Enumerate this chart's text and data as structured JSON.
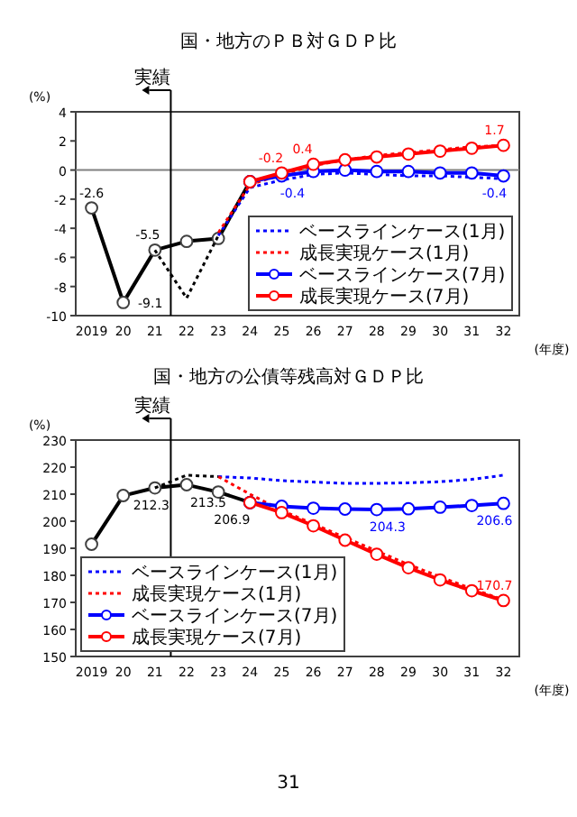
{
  "chart_data": [
    {
      "type": "line",
      "title": "国・地方のＰＢ対ＧＤＰ比",
      "ylabel": "(%)",
      "xlabel": "(年度)",
      "categories": [
        "2019",
        "20",
        "21",
        "22",
        "23",
        "24",
        "25",
        "26",
        "27",
        "28",
        "29",
        "30",
        "31",
        "32"
      ],
      "ylim": [
        -10,
        4
      ],
      "yticks": [
        -10,
        -8,
        -6,
        -4,
        -2,
        0,
        2,
        4
      ],
      "ref_lines": [
        {
          "axis": "y",
          "value": 0,
          "color": "#808080"
        },
        {
          "axis": "x",
          "value": "21",
          "label": "実績",
          "color": "#000000"
        }
      ],
      "legend": "bottom right",
      "series": [
        {
          "color": "#000000",
          "marker": "circle",
          "line_style": "solid",
          "values": [
            -2.6,
            -9.1,
            -5.5,
            -4.9,
            -4.7,
            -0.8,
            null,
            null,
            null,
            null,
            null,
            null,
            null,
            null
          ],
          "value_labels": [
            "-2.6",
            "-9.1",
            "-5.5",
            null,
            null,
            null,
            null,
            null,
            null,
            null,
            null,
            null,
            null,
            null
          ]
        },
        {
          "color": "#000000",
          "marker": "none",
          "line_style": "dotted",
          "values": [
            null,
            null,
            -5.5,
            -8.8,
            -4.5,
            null,
            null,
            null,
            null,
            null,
            null,
            null,
            null,
            null
          ]
        },
        {
          "name": "ベースラインケース(1月)",
          "color": "#0000ff",
          "marker": "none",
          "line_style": "dotted",
          "values": [
            null,
            null,
            null,
            null,
            -4.5,
            -1.2,
            -0.7,
            -0.3,
            -0.2,
            -0.3,
            -0.4,
            -0.4,
            -0.5,
            -0.6
          ]
        },
        {
          "name": "成長実現ケース(1月)",
          "color": "#ff0000",
          "marker": "none",
          "line_style": "dotted",
          "values": [
            null,
            null,
            null,
            null,
            -4.3,
            -1.0,
            -0.3,
            0.3,
            0.7,
            1.0,
            1.2,
            1.4,
            1.6,
            1.7
          ]
        },
        {
          "name": "ベースラインケース(7月)",
          "color": "#0000ff",
          "marker": "circle",
          "line_style": "solid",
          "values": [
            null,
            null,
            null,
            null,
            null,
            -0.8,
            -0.4,
            -0.1,
            0.0,
            -0.1,
            -0.1,
            -0.2,
            -0.2,
            -0.4
          ],
          "value_labels": [
            null,
            null,
            null,
            null,
            null,
            null,
            "-0.4",
            null,
            null,
            null,
            null,
            null,
            null,
            "-0.4"
          ]
        },
        {
          "name": "成長実現ケース(7月)",
          "color": "#ff0000",
          "marker": "circle",
          "line_style": "solid",
          "values": [
            null,
            null,
            null,
            null,
            null,
            -0.8,
            -0.2,
            0.4,
            0.7,
            0.9,
            1.1,
            1.3,
            1.5,
            1.7
          ],
          "value_labels": [
            null,
            null,
            null,
            null,
            null,
            null,
            "-0.2",
            "0.4",
            null,
            null,
            null,
            null,
            null,
            "1.7"
          ]
        }
      ]
    },
    {
      "type": "line",
      "title": "国・地方の公債等残高対ＧＤＰ比",
      "ylabel": "(%)",
      "xlabel": "(年度)",
      "categories": [
        "2019",
        "20",
        "21",
        "22",
        "23",
        "24",
        "25",
        "26",
        "27",
        "28",
        "29",
        "30",
        "31",
        "32"
      ],
      "ylim": [
        150,
        230
      ],
      "yticks": [
        150,
        160,
        170,
        180,
        190,
        200,
        210,
        220,
        230
      ],
      "ref_lines": [
        {
          "axis": "x",
          "value": "21",
          "label": "実績",
          "color": "#000000"
        }
      ],
      "annotations": [
        "31"
      ],
      "legend": "bottom",
      "series": [
        {
          "color": "#000000",
          "marker": "circle",
          "line_style": "solid",
          "values": [
            191.5,
            209.5,
            212.3,
            213.5,
            210.8,
            206.9,
            null,
            null,
            null,
            null,
            null,
            null,
            null,
            null
          ],
          "value_labels": [
            null,
            null,
            "212.3",
            "213.5",
            null,
            "206.9",
            null,
            null,
            null,
            null,
            null,
            null,
            null,
            null
          ]
        },
        {
          "color": "#000000",
          "marker": "none",
          "line_style": "dotted",
          "values": [
            null,
            null,
            212.3,
            217,
            216.5,
            null,
            null,
            null,
            null,
            null,
            null,
            null,
            null,
            null
          ]
        },
        {
          "name": "ベースラインケース(1月)",
          "color": "#0000ff",
          "marker": "none",
          "line_style": "dotted",
          "values": [
            null,
            null,
            null,
            null,
            216.5,
            216,
            215,
            214.5,
            214,
            214,
            214.2,
            214.6,
            215.5,
            217
          ]
        },
        {
          "name": "成長実現ケース(1月)",
          "color": "#ff0000",
          "marker": "none",
          "line_style": "dotted",
          "values": [
            null,
            null,
            null,
            null,
            216.5,
            210,
            204,
            199,
            194,
            189,
            184,
            179.5,
            175,
            171
          ]
        },
        {
          "name": "ベースラインケース(7月)",
          "color": "#0000ff",
          "marker": "circle",
          "line_style": "solid",
          "values": [
            null,
            null,
            null,
            null,
            null,
            206.9,
            205.5,
            204.8,
            204.5,
            204.3,
            204.6,
            205.2,
            205.8,
            206.6
          ],
          "value_labels": [
            null,
            null,
            null,
            null,
            null,
            null,
            null,
            null,
            null,
            "204.3",
            null,
            null,
            null,
            "206.6"
          ]
        },
        {
          "name": "成長実現ケース(7月)",
          "color": "#ff0000",
          "marker": "circle",
          "line_style": "solid",
          "values": [
            null,
            null,
            null,
            null,
            null,
            206.9,
            203.2,
            198.3,
            193,
            187.8,
            182.8,
            178.3,
            174.3,
            170.7
          ],
          "value_labels": [
            null,
            null,
            null,
            null,
            null,
            null,
            null,
            null,
            null,
            null,
            null,
            null,
            null,
            "170.7"
          ]
        }
      ]
    }
  ]
}
